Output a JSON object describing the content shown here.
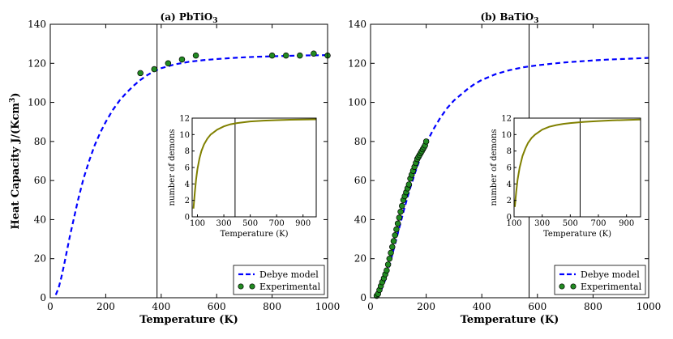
{
  "figure": {
    "ylabel_main": "Heat Capacity J",
    "ylabel_unit": "/(Kcm",
    "ylabel_sup": "3",
    "ylabel_close": ")",
    "xlabel": "Temperature (K)"
  },
  "chart_data": [
    {
      "type": "line",
      "title_prefix": "(a) PbTiO",
      "title_sub": "3",
      "xlabel": "Temperature (K)",
      "xlim": [
        0,
        1000
      ],
      "ylim": [
        0,
        140
      ],
      "xticks": [
        0,
        200,
        400,
        600,
        800,
        1000
      ],
      "yticks": [
        0,
        20,
        40,
        60,
        80,
        100,
        120,
        140
      ],
      "vline_x": 385,
      "legend_position": "lower-right",
      "series": [
        {
          "name": "Debye model",
          "style": "dashed",
          "color": "#0000ff",
          "x": [
            20,
            30,
            40,
            50,
            60,
            70,
            80,
            100,
            120,
            140,
            160,
            180,
            200,
            225,
            250,
            275,
            300,
            325,
            350,
            375,
            400,
            450,
            500,
            550,
            600,
            650,
            700,
            750,
            800,
            850,
            900,
            950,
            1000
          ],
          "y": [
            1.5,
            5,
            10.5,
            17,
            24,
            31,
            37.5,
            50,
            61,
            70,
            78,
            84.5,
            90,
            96,
            101,
            105,
            108.5,
            111.5,
            114,
            116,
            117.5,
            119.5,
            120.8,
            121.6,
            122.2,
            122.7,
            123.1,
            123.4,
            123.6,
            123.8,
            124,
            124.1,
            124.2
          ]
        },
        {
          "name": "Experimental",
          "style": "markers",
          "color": "#228b22",
          "x": [
            325,
            375,
            425,
            475,
            525,
            800,
            850,
            900,
            950,
            1000
          ],
          "y": [
            115,
            117,
            120,
            122,
            124,
            124,
            124,
            124,
            125,
            124
          ]
        }
      ],
      "inset": {
        "xlabel": "Temperature (K)",
        "ylabel": "number of demons",
        "xlim": [
          60,
          1000
        ],
        "ylim": [
          0,
          12
        ],
        "xticks": [
          100,
          300,
          500,
          700,
          900
        ],
        "yticks": [
          0,
          2,
          4,
          6,
          8,
          10,
          12
        ],
        "vline_x": 385,
        "line_color": "#808000",
        "x": [
          70,
          80,
          90,
          100,
          115,
          130,
          150,
          175,
          200,
          250,
          300,
          350,
          400,
          500,
          600,
          700,
          800,
          900,
          1000
        ],
        "y": [
          1,
          3,
          4.6,
          5.8,
          7.1,
          8,
          8.8,
          9.5,
          10,
          10.6,
          11,
          11.25,
          11.4,
          11.6,
          11.7,
          11.75,
          11.8,
          11.82,
          11.85
        ]
      }
    },
    {
      "type": "line",
      "title_prefix": "(b) BaTiO",
      "title_sub": "3",
      "xlabel": "Temperature (K)",
      "xlim": [
        0,
        1000
      ],
      "ylim": [
        0,
        140
      ],
      "xticks": [
        0,
        200,
        400,
        600,
        800,
        1000
      ],
      "yticks": [
        0,
        20,
        40,
        60,
        80,
        100,
        120,
        140
      ],
      "vline_x": 570,
      "legend_position": "lower-right",
      "series": [
        {
          "name": "Debye model",
          "style": "dashed",
          "color": "#0000ff",
          "x": [
            20,
            30,
            40,
            50,
            60,
            70,
            80,
            100,
            120,
            140,
            160,
            180,
            200,
            225,
            250,
            275,
            300,
            325,
            350,
            375,
            400,
            450,
            500,
            550,
            600,
            650,
            700,
            750,
            800,
            850,
            900,
            950,
            1000
          ],
          "y": [
            0.5,
            2,
            4.5,
            8,
            12.5,
            17.5,
            23,
            34,
            45,
            55,
            64,
            72,
            79,
            86,
            92,
            97,
            101,
            104,
            107,
            109.5,
            111.5,
            114.5,
            116.5,
            118,
            119,
            119.8,
            120.5,
            121,
            121.5,
            121.9,
            122.2,
            122.5,
            122.8
          ]
        },
        {
          "name": "Experimental",
          "style": "markers",
          "color": "#228b22",
          "x": [
            22,
            27,
            32,
            37,
            42,
            48,
            53,
            58,
            63,
            68,
            73,
            78,
            83,
            88,
            93,
            98,
            103,
            108,
            113,
            118,
            123,
            128,
            133,
            138,
            143,
            148,
            153,
            158,
            163,
            168,
            172,
            176,
            180,
            184,
            188,
            192,
            196,
            200
          ],
          "y": [
            1,
            2,
            4,
            6,
            8,
            10,
            12,
            14,
            17,
            20,
            23,
            26,
            29,
            32,
            35,
            38,
            41,
            44,
            47,
            50,
            52,
            54,
            56,
            58,
            61,
            63,
            65,
            67,
            69,
            71,
            72,
            73,
            74,
            75,
            76,
            77,
            78,
            80
          ]
        }
      ],
      "inset": {
        "xlabel": "Temperature (K)",
        "ylabel": "number of demons",
        "xlim": [
          100,
          1000
        ],
        "ylim": [
          0,
          12
        ],
        "xticks": [
          100,
          300,
          500,
          700,
          900
        ],
        "yticks": [
          0,
          2,
          4,
          6,
          8,
          10,
          12
        ],
        "vline_x": 570,
        "line_color": "#808000",
        "x": [
          105,
          115,
          125,
          140,
          160,
          180,
          200,
          225,
          250,
          300,
          350,
          400,
          450,
          500,
          600,
          700,
          800,
          900,
          1000
        ],
        "y": [
          1.2,
          3,
          4.5,
          6,
          7.4,
          8.3,
          9,
          9.6,
          10,
          10.6,
          10.95,
          11.15,
          11.3,
          11.4,
          11.55,
          11.65,
          11.72,
          11.78,
          11.82
        ]
      }
    }
  ]
}
